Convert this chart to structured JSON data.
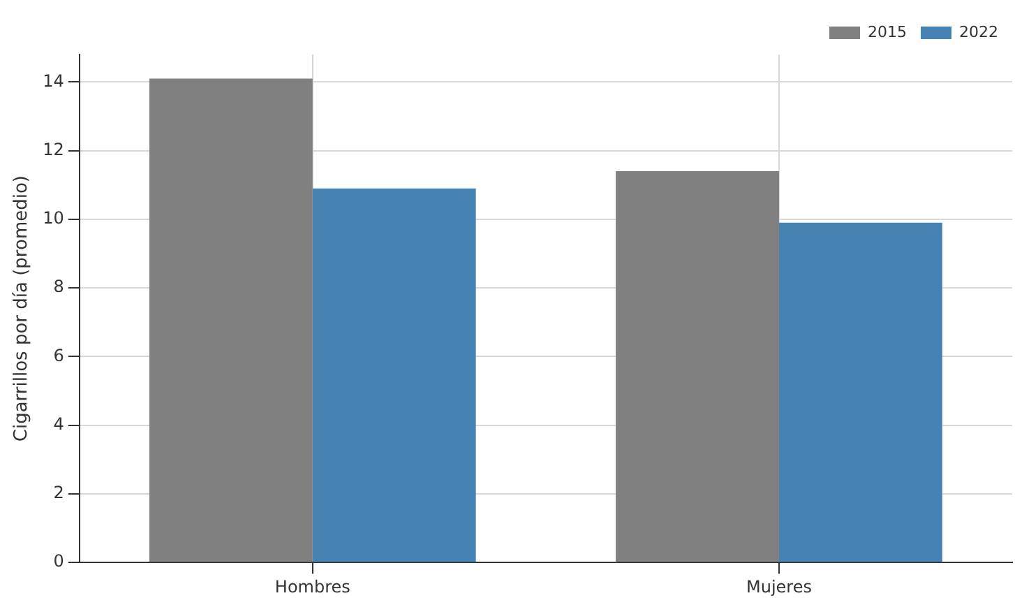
{
  "chart_data": {
    "type": "bar",
    "ylabel": "Cigarrillos por día (promedio)",
    "categories": [
      "Hombres",
      "Mujeres"
    ],
    "series": [
      {
        "name": "2015",
        "color": "#808080",
        "values": [
          14.1,
          11.4
        ]
      },
      {
        "name": "2022",
        "color": "#4682b4",
        "values": [
          10.9,
          9.9
        ]
      }
    ],
    "ylim": [
      0,
      14.8
    ],
    "yticks": [
      0,
      2,
      4,
      6,
      8,
      10,
      12,
      14
    ],
    "grid": true,
    "legend": "top right"
  }
}
